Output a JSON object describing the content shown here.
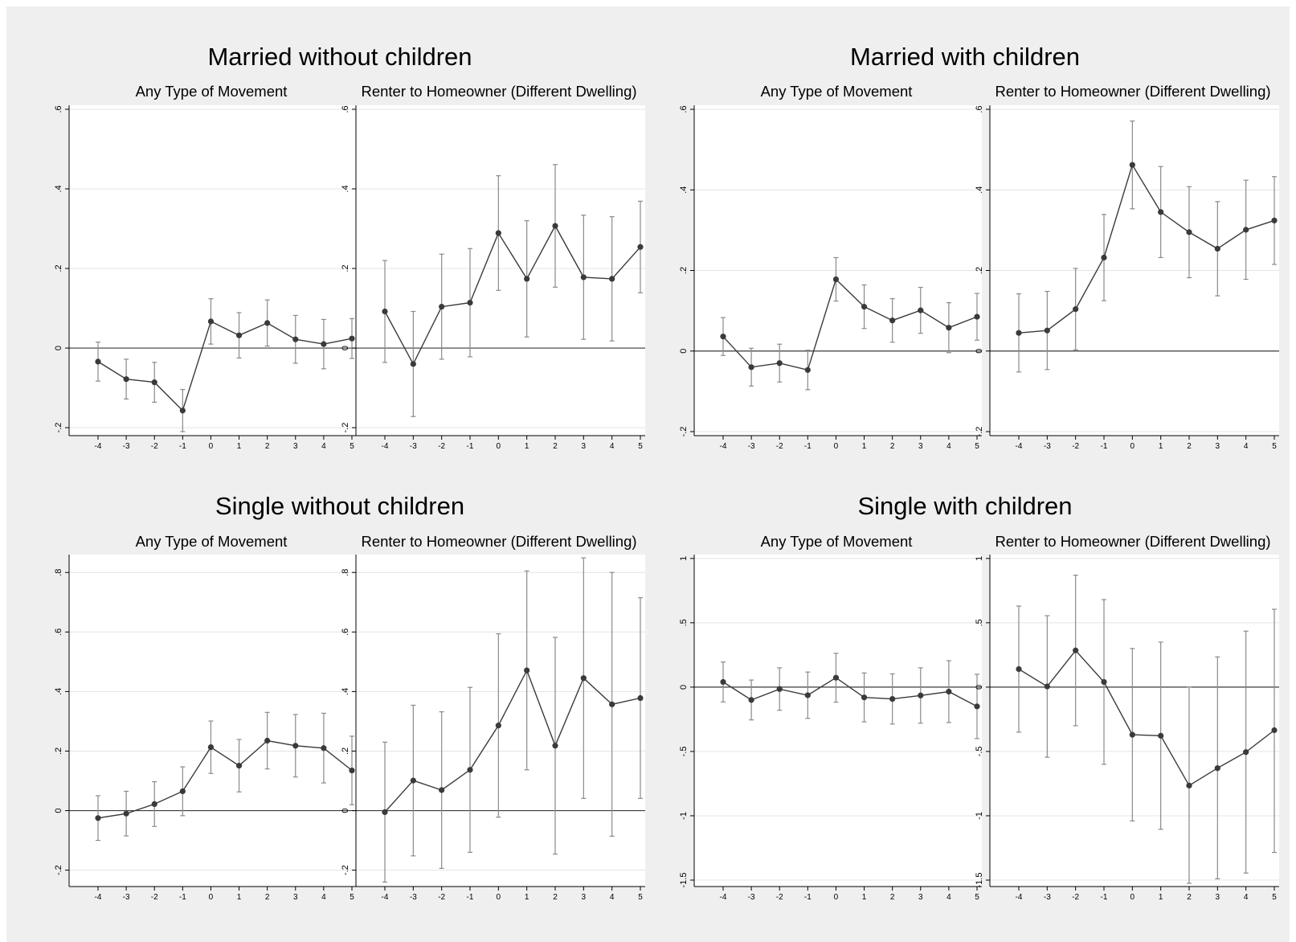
{
  "colors": {
    "background": "#efefef",
    "plot_background": "#ffffff",
    "series": "#3a3a3a",
    "error_bar": "#8a8a8a",
    "grid": "#e4e4e4"
  },
  "chart_data": [
    {
      "type": "line",
      "title": "Married without children",
      "panels": [
        {
          "subtitle": "Any Type of Movement",
          "ylim": [
            -0.22,
            0.61
          ],
          "yticks": [
            -0.2,
            0,
            0.2,
            0.4,
            0.6
          ],
          "ytick_labels": [
            "-.2",
            "0",
            ".2",
            ".4",
            ".6"
          ],
          "x": [
            -4,
            -3,
            -2,
            -1,
            0,
            1,
            2,
            3,
            4,
            5
          ],
          "x_labels": [
            "-4",
            "-3",
            "-2",
            "-1",
            "0",
            "1",
            "2",
            "3",
            "4",
            "5"
          ],
          "y": [
            -0.034,
            -0.078,
            -0.086,
            -0.157,
            0.067,
            0.032,
            0.063,
            0.022,
            0.01,
            0.024
          ],
          "ci_low": [
            -0.083,
            -0.128,
            -0.136,
            -0.21,
            0.01,
            -0.025,
            0.005,
            -0.038,
            -0.052,
            -0.026
          ],
          "ci_high": [
            0.015,
            -0.028,
            -0.036,
            -0.104,
            0.124,
            0.089,
            0.121,
            0.082,
            0.072,
            0.074
          ]
        },
        {
          "subtitle": "Renter to Homeowner (Different Dwelling)",
          "ylim": [
            -0.22,
            0.61
          ],
          "yticks": [
            -0.2,
            0,
            0.2,
            0.4,
            0.6
          ],
          "ytick_labels": [
            "-.2",
            "0",
            ".2",
            ".4",
            ".6"
          ],
          "x": [
            -4,
            -3,
            -2,
            -1,
            0,
            1,
            2,
            3,
            4,
            5
          ],
          "x_labels": [
            "-4",
            "-3",
            "-2",
            "-1",
            "0",
            "1",
            "2",
            "3",
            "4",
            "5"
          ],
          "y": [
            0.092,
            -0.04,
            0.104,
            0.114,
            0.289,
            0.174,
            0.307,
            0.178,
            0.174,
            0.254
          ],
          "ci_low": [
            -0.036,
            -0.172,
            -0.028,
            -0.022,
            0.145,
            0.028,
            0.153,
            0.022,
            0.018,
            0.139
          ],
          "ci_high": [
            0.22,
            0.092,
            0.236,
            0.25,
            0.433,
            0.32,
            0.461,
            0.334,
            0.33,
            0.369
          ]
        }
      ]
    },
    {
      "type": "line",
      "title": "Married with children",
      "panels": [
        {
          "subtitle": "Any Type of Movement",
          "ylim": [
            -0.21,
            0.61
          ],
          "yticks": [
            -0.2,
            0,
            0.2,
            0.4,
            0.6
          ],
          "ytick_labels": [
            "-.2",
            "0",
            ".2",
            ".4",
            ".6"
          ],
          "x": [
            -4,
            -3,
            -2,
            -1,
            0,
            1,
            2,
            3,
            4,
            5
          ],
          "x_labels": [
            "-4",
            "-3",
            "-2",
            "-1",
            "0",
            "1",
            "2",
            "3",
            "4",
            "5"
          ],
          "y": [
            0.036,
            -0.04,
            -0.03,
            -0.047,
            0.178,
            0.11,
            0.076,
            0.101,
            0.058,
            0.085
          ],
          "ci_low": [
            -0.011,
            -0.087,
            -0.077,
            -0.096,
            0.124,
            0.056,
            0.022,
            0.044,
            -0.004,
            0.027
          ],
          "ci_high": [
            0.083,
            0.007,
            0.017,
            0.002,
            0.232,
            0.164,
            0.13,
            0.158,
            0.12,
            0.143
          ]
        },
        {
          "subtitle": "Renter to Homeowner (Different Dwelling)",
          "ylim": [
            -0.21,
            0.61
          ],
          "yticks": [
            -0.2,
            0,
            0.2,
            0.4,
            0.6
          ],
          "ytick_labels": [
            "-.2",
            "0",
            ".2",
            ".4",
            ".6"
          ],
          "x": [
            -4,
            -3,
            -2,
            -1,
            0,
            1,
            2,
            3,
            4,
            5
          ],
          "x_labels": [
            "-4",
            "-3",
            "-2",
            "-1",
            "0",
            "1",
            "2",
            "3",
            "4",
            "5"
          ],
          "y": [
            0.045,
            0.051,
            0.104,
            0.232,
            0.462,
            0.345,
            0.295,
            0.254,
            0.301,
            0.324
          ],
          "ci_low": [
            -0.052,
            -0.046,
            0.003,
            0.125,
            0.353,
            0.232,
            0.182,
            0.137,
            0.178,
            0.215
          ],
          "ci_high": [
            0.142,
            0.148,
            0.205,
            0.339,
            0.571,
            0.458,
            0.408,
            0.371,
            0.424,
            0.433
          ]
        }
      ]
    },
    {
      "type": "line",
      "title": "Single without children",
      "panels": [
        {
          "subtitle": "Any Type of Movement",
          "ylim": [
            -0.255,
            0.86
          ],
          "yticks": [
            -0.2,
            0,
            0.2,
            0.4,
            0.6,
            0.8
          ],
          "ytick_labels": [
            "-.2",
            "0",
            ".2",
            ".4",
            ".6",
            ".8"
          ],
          "x": [
            -4,
            -3,
            -2,
            -1,
            0,
            1,
            2,
            3,
            4,
            5
          ],
          "x_labels": [
            "-4",
            "-3",
            "-2",
            "-1",
            "0",
            "1",
            "2",
            "3",
            "4",
            "5"
          ],
          "y": [
            -0.025,
            -0.01,
            0.022,
            0.065,
            0.213,
            0.151,
            0.235,
            0.218,
            0.21,
            0.135
          ],
          "ci_low": [
            -0.1,
            -0.085,
            -0.053,
            -0.017,
            0.125,
            0.063,
            0.14,
            0.113,
            0.093,
            0.02
          ],
          "ci_high": [
            0.05,
            0.065,
            0.097,
            0.147,
            0.301,
            0.239,
            0.33,
            0.323,
            0.327,
            0.25
          ]
        },
        {
          "subtitle": "Renter to Homeowner (Different Dwelling)",
          "ylim": [
            -0.255,
            0.86
          ],
          "yticks": [
            -0.2,
            0,
            0.2,
            0.4,
            0.6,
            0.8
          ],
          "ytick_labels": [
            "-.2",
            "0",
            ".2",
            ".4",
            ".6",
            ".8"
          ],
          "x": [
            -4,
            -3,
            -2,
            -1,
            0,
            1,
            2,
            3,
            4,
            5
          ],
          "x_labels": [
            "-4",
            "-3",
            "-2",
            "-1",
            "0",
            "1",
            "2",
            "3",
            "4",
            "5"
          ],
          "y": [
            -0.005,
            0.101,
            0.069,
            0.137,
            0.286,
            0.471,
            0.218,
            0.445,
            0.357,
            0.378
          ],
          "ci_low": [
            -0.24,
            -0.152,
            -0.194,
            -0.14,
            -0.022,
            0.137,
            -0.146,
            0.041,
            -0.086,
            0.041
          ],
          "ci_high": [
            0.23,
            0.354,
            0.332,
            0.414,
            0.594,
            0.805,
            0.582,
            0.849,
            0.8,
            0.715
          ]
        }
      ]
    },
    {
      "type": "line",
      "title": "Single with children",
      "panels": [
        {
          "subtitle": "Any Type of Movement",
          "ylim": [
            -1.55,
            1.03
          ],
          "yticks": [
            -1.5,
            -1,
            -0.5,
            0,
            0.5,
            1
          ],
          "ytick_labels": [
            "-1.5",
            "-1",
            "-.5",
            "0",
            ".5",
            "1"
          ],
          "x": [
            -4,
            -3,
            -2,
            -1,
            0,
            1,
            2,
            3,
            4,
            5
          ],
          "x_labels": [
            "-4",
            "-3",
            "-2",
            "-1",
            "0",
            "1",
            "2",
            "3",
            "4",
            "5"
          ],
          "y": [
            0.04,
            -0.1,
            -0.015,
            -0.063,
            0.073,
            -0.08,
            -0.092,
            -0.065,
            -0.035,
            -0.15
          ],
          "ci_low": [
            -0.115,
            -0.255,
            -0.18,
            -0.243,
            -0.117,
            -0.27,
            -0.287,
            -0.28,
            -0.275,
            -0.4
          ],
          "ci_high": [
            0.195,
            0.055,
            0.15,
            0.117,
            0.263,
            0.11,
            0.103,
            0.15,
            0.205,
            0.1
          ]
        },
        {
          "subtitle": "Renter to Homeowner (Different Dwelling)",
          "ylim": [
            -1.55,
            1.03
          ],
          "yticks": [
            -1.5,
            -1,
            -0.5,
            0,
            0.5,
            1
          ],
          "ytick_labels": [
            "-1.5",
            "-1",
            "-.5",
            "0",
            ".5",
            "1"
          ],
          "x": [
            -4,
            -3,
            -2,
            -1,
            0,
            1,
            2,
            3,
            4,
            5
          ],
          "x_labels": [
            "-4",
            "-3",
            "-2",
            "-1",
            "0",
            "1",
            "2",
            "3",
            "4",
            "5"
          ],
          "y": [
            0.14,
            0.005,
            0.285,
            0.04,
            -0.37,
            -0.378,
            -0.765,
            -0.63,
            -0.505,
            -0.335
          ],
          "ci_low": [
            -0.35,
            -0.545,
            -0.3,
            -0.6,
            -1.04,
            -1.105,
            -1.525,
            -1.49,
            -1.445,
            -1.285
          ],
          "ci_high": [
            0.63,
            0.555,
            0.87,
            0.68,
            0.3,
            0.35,
            0.0,
            0.235,
            0.435,
            0.605
          ]
        }
      ]
    }
  ]
}
